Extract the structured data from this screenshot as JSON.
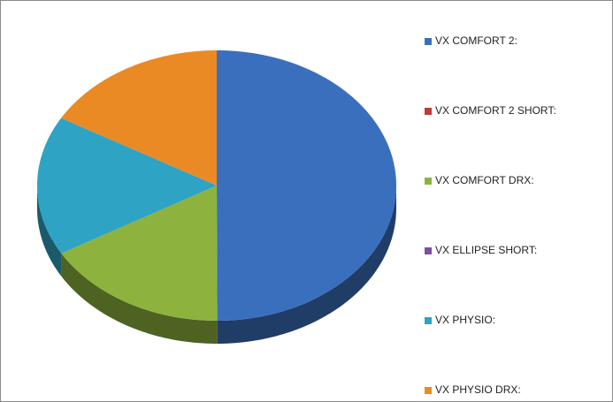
{
  "chart_data": {
    "type": "pie",
    "categories": [
      "VX COMFORT 2:",
      "VX COMFORT 2 SHORT:",
      "VX COMFORT DRX:",
      "VX ELLIPSE SHORT:",
      "VX PHYSIO:",
      "VX PHYSIO DRX:"
    ],
    "values": [
      50,
      0,
      16.7,
      0,
      16.7,
      16.7
    ],
    "colors": [
      "#3a6fbd",
      "#be3a34",
      "#8db33e",
      "#7a4fa0",
      "#2fa3c3",
      "#ea8a25"
    ],
    "legend": "right"
  }
}
